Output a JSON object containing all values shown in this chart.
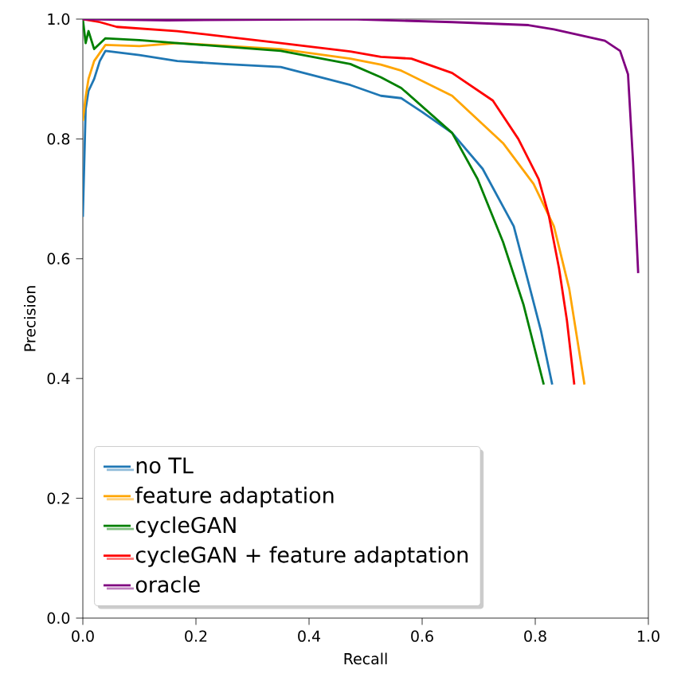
{
  "chart_data": {
    "type": "line",
    "xlabel": "Recall",
    "ylabel": "Precision",
    "xlim": [
      0,
      1
    ],
    "ylim": [
      0,
      1
    ],
    "xticks": [
      {
        "value": 0,
        "label": "0.0"
      },
      {
        "value": 0.2,
        "label": "0.2"
      },
      {
        "value": 0.4,
        "label": "0.4"
      },
      {
        "value": 0.6,
        "label": "0.6"
      },
      {
        "value": 0.8,
        "label": "0.8"
      },
      {
        "value": 1,
        "label": "1.0"
      }
    ],
    "yticks": [
      {
        "value": 0,
        "label": "0.0"
      },
      {
        "value": 0.2,
        "label": "0.2"
      },
      {
        "value": 0.4,
        "label": "0.4"
      },
      {
        "value": 0.6,
        "label": "0.6"
      },
      {
        "value": 0.8,
        "label": "0.8"
      },
      {
        "value": 1,
        "label": "1.0"
      }
    ],
    "grid": false,
    "legend": "bottom left",
    "marker": "none",
    "line_style": "solid",
    "series": [
      {
        "name": "no TL",
        "color": "#1f77b4",
        "x": [
          0,
          0.005,
          0.01,
          0.02,
          0.03,
          0.04,
          0.1,
          0.167,
          0.25,
          0.35,
          0.473,
          0.527,
          0.563,
          0.6,
          0.653,
          0.707,
          0.762,
          0.788,
          0.81,
          0.83
        ],
        "values": [
          0.67,
          0.85,
          0.88,
          0.9,
          0.93,
          0.947,
          0.94,
          0.93,
          0.925,
          0.92,
          0.89,
          0.872,
          0.868,
          0.845,
          0.81,
          0.75,
          0.654,
          0.56,
          0.48,
          0.39
        ]
      },
      {
        "name": "feature adaptation",
        "color": "#ffa500",
        "x": [
          0,
          0.005,
          0.01,
          0.02,
          0.04,
          0.1,
          0.167,
          0.35,
          0.473,
          0.527,
          0.563,
          0.653,
          0.743,
          0.797,
          0.833,
          0.86,
          0.887
        ],
        "values": [
          0.83,
          0.87,
          0.9,
          0.93,
          0.957,
          0.955,
          0.96,
          0.95,
          0.934,
          0.924,
          0.914,
          0.872,
          0.793,
          0.725,
          0.654,
          0.55,
          0.39
        ]
      },
      {
        "name": "cycleGAN",
        "color": "#008000",
        "x": [
          0,
          0.005,
          0.01,
          0.02,
          0.04,
          0.1,
          0.167,
          0.35,
          0.473,
          0.527,
          0.563,
          0.653,
          0.698,
          0.743,
          0.779,
          0.815
        ],
        "values": [
          1.0,
          0.96,
          0.98,
          0.95,
          0.968,
          0.965,
          0.96,
          0.947,
          0.925,
          0.903,
          0.885,
          0.81,
          0.733,
          0.628,
          0.524,
          0.39
        ]
      },
      {
        "name": "cycleGAN + feature adaptation",
        "color": "#ff0000",
        "x": [
          0,
          0.03,
          0.06,
          0.167,
          0.35,
          0.473,
          0.527,
          0.581,
          0.653,
          0.725,
          0.77,
          0.806,
          0.824,
          0.842,
          0.856,
          0.869
        ],
        "values": [
          1.0,
          0.995,
          0.987,
          0.98,
          0.96,
          0.946,
          0.937,
          0.934,
          0.91,
          0.864,
          0.8,
          0.733,
          0.672,
          0.584,
          0.497,
          0.39
        ]
      },
      {
        "name": "oracle",
        "color": "#800080",
        "x": [
          0,
          0.15,
          0.473,
          0.653,
          0.788,
          0.833,
          0.923,
          0.95,
          0.964,
          0.973,
          0.982
        ],
        "values": [
          1.0,
          0.998,
          1.0,
          0.995,
          0.99,
          0.983,
          0.964,
          0.947,
          0.908,
          0.76,
          0.576
        ]
      }
    ]
  }
}
